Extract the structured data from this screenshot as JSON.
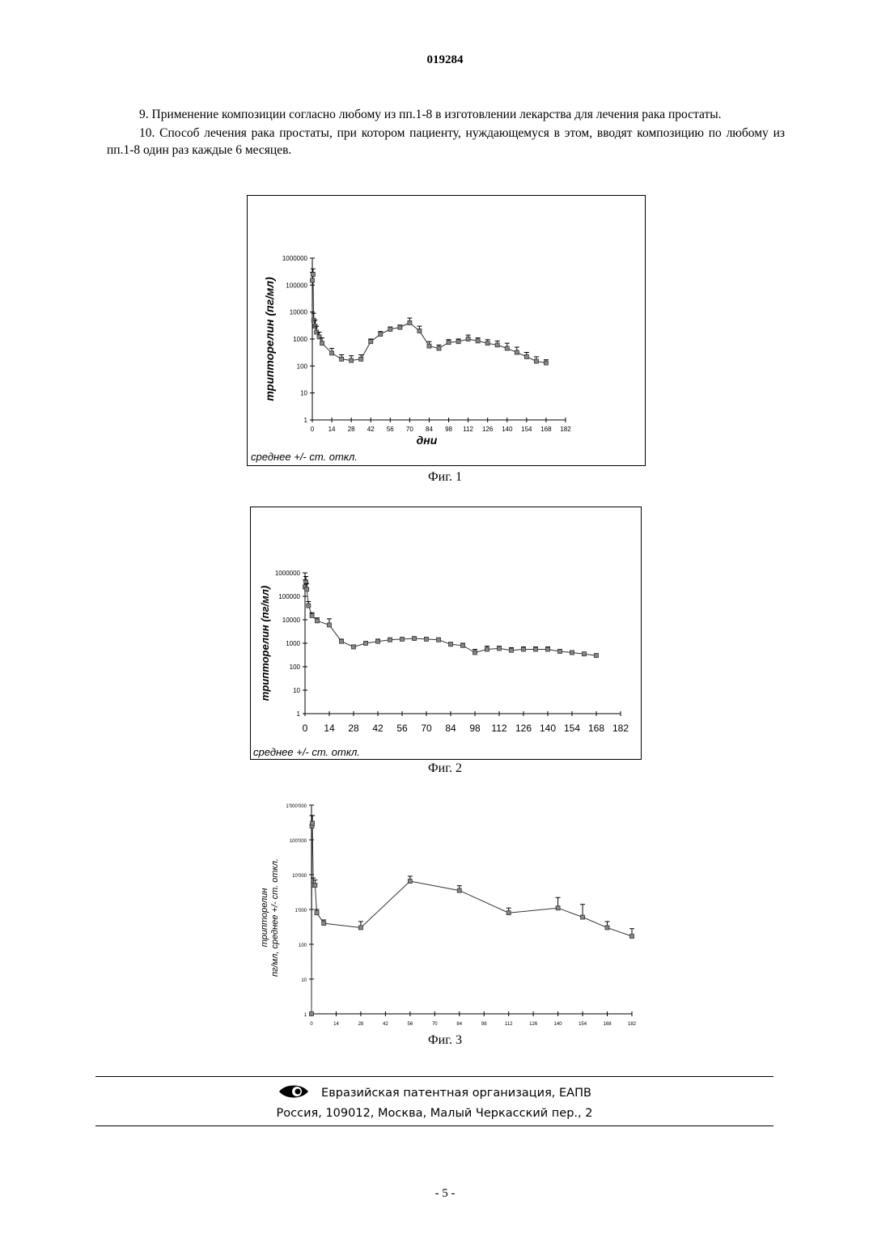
{
  "header": {
    "doc_number": "019284"
  },
  "claims": [
    "9. Применение композиции согласно любому из пп.1-8 в изготовлении лекарства для лечения рака простаты.",
    "10. Способ лечения рака простаты, при котором пациенту, нуждающемуся в этом, вводят композицию по любому из пп.1-8 один раз каждые 6 месяцев."
  ],
  "figures": [
    {
      "caption": "Фиг. 1",
      "note": "среднее +/- ст. откл."
    },
    {
      "caption": "Фиг. 2",
      "note": "среднее +/- ст. откл."
    },
    {
      "caption": "Фиг. 3",
      "note": ""
    }
  ],
  "chart_data": [
    {
      "type": "line",
      "ylabel": "трипторелин (пг/мл)",
      "xlabel": "дни",
      "yscale": "log",
      "ylim": [
        1,
        1000000
      ],
      "xlim": [
        0,
        182
      ],
      "yticks": [
        "1000000",
        "100000",
        "10000",
        "1000",
        "100",
        "10",
        "1"
      ],
      "xticks": [
        "0",
        "14",
        "28",
        "42",
        "56",
        "70",
        "84",
        "98",
        "112",
        "126",
        "140",
        "154",
        "168",
        "182"
      ],
      "x": [
        0,
        0.5,
        1,
        2,
        3,
        5,
        7,
        14,
        21,
        28,
        35,
        42,
        49,
        56,
        63,
        70,
        77,
        84,
        91,
        98,
        105,
        112,
        119,
        126,
        133,
        140,
        147,
        154,
        161,
        168
      ],
      "y": [
        150000,
        250000,
        5000,
        3000,
        1800,
        1200,
        700,
        300,
        180,
        160,
        180,
        800,
        1500,
        2300,
        2700,
        4000,
        2000,
        550,
        450,
        750,
        800,
        1000,
        850,
        700,
        600,
        450,
        320,
        220,
        150,
        130
      ],
      "yerr_upper": [
        300000,
        400000,
        9000,
        5000,
        3000,
        1800,
        1100,
        450,
        260,
        240,
        260,
        1000,
        1900,
        2800,
        3300,
        6000,
        3000,
        800,
        600,
        950,
        1000,
        1400,
        1100,
        950,
        850,
        700,
        500,
        320,
        220,
        170
      ]
    },
    {
      "type": "line",
      "ylabel": "трипторелин (пг/мл)",
      "xlabel": "",
      "yscale": "log",
      "ylim": [
        1,
        1000000
      ],
      "xlim": [
        0,
        182
      ],
      "yticks": [
        "1000000",
        "100000",
        "10000",
        "1000",
        "100",
        "10",
        "1"
      ],
      "xticks": [
        "0",
        "14",
        "28",
        "42",
        "56",
        "70",
        "84",
        "98",
        "112",
        "126",
        "140",
        "154",
        "168",
        "182"
      ],
      "x": [
        0,
        0.5,
        1,
        2,
        4,
        7,
        14,
        21,
        28,
        35,
        42,
        49,
        56,
        63,
        70,
        77,
        84,
        91,
        98,
        105,
        112,
        119,
        126,
        133,
        140,
        147,
        154,
        161,
        168
      ],
      "y": [
        250000,
        400000,
        200000,
        40000,
        15000,
        9000,
        6000,
        1200,
        700,
        1000,
        1200,
        1400,
        1500,
        1600,
        1500,
        1400,
        900,
        800,
        400,
        550,
        600,
        500,
        550,
        550,
        550,
        450,
        400,
        350,
        300
      ],
      "yerr_upper": [
        500000,
        700000,
        350000,
        60000,
        20000,
        12000,
        11000,
        1500,
        850,
        1200,
        1500,
        1700,
        1800,
        1900,
        1800,
        1700,
        1100,
        1000,
        550,
        750,
        750,
        650,
        700,
        700,
        700,
        550,
        480,
        420,
        360
      ]
    },
    {
      "type": "line",
      "ylabel": "трипторелин пг/мл, среднее +/- ст. откл.",
      "xlabel": "",
      "yscale": "log",
      "ylim": [
        1,
        1000000
      ],
      "xlim": [
        0,
        182
      ],
      "yticks": [
        "1'000'000",
        "100'000",
        "10'000",
        "1'000",
        "100",
        "10",
        "1"
      ],
      "xticks": [
        "0",
        "14",
        "28",
        "42",
        "56",
        "70",
        "84",
        "98",
        "112",
        "126",
        "140",
        "154",
        "168",
        "182"
      ],
      "x": [
        0,
        0.25,
        0.5,
        1,
        2,
        3,
        7,
        28,
        56,
        84,
        112,
        140,
        154,
        168,
        182
      ],
      "y": [
        1,
        250000,
        300000,
        5000,
        5000,
        800,
        400,
        300,
        6500,
        3500,
        800,
        1100,
        600,
        300,
        170
      ],
      "yerr_upper": [
        1,
        500000,
        500000,
        8000,
        7000,
        1000,
        500,
        450,
        9000,
        4800,
        1100,
        2200,
        1400,
        450,
        280
      ]
    }
  ],
  "footer": {
    "org": "Евразийская патентная организация, ЕАПВ",
    "address": "Россия, 109012, Москва, Малый Черкасский пер., 2"
  },
  "page_number": "- 5 -"
}
